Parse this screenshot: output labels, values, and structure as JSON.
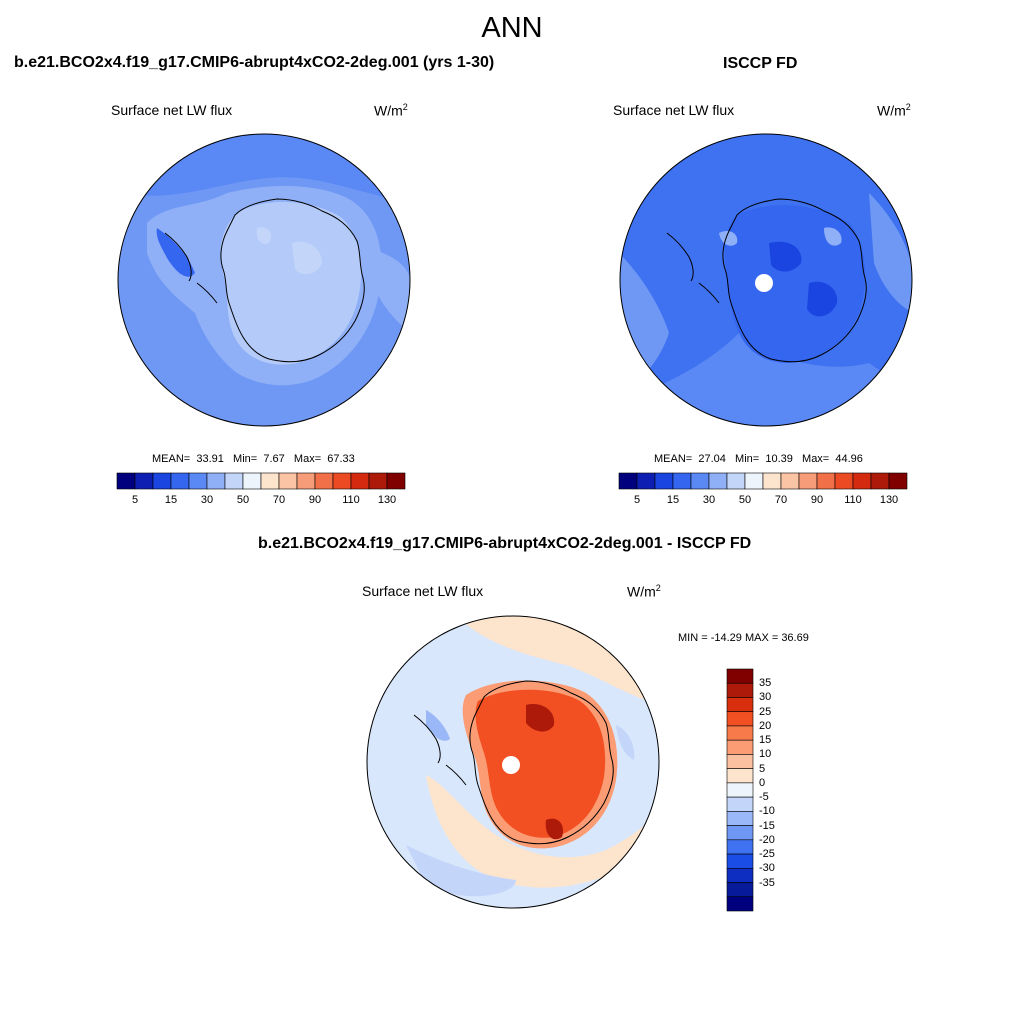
{
  "page_title": "ANN",
  "units_base": "W/m",
  "units_exp": "2",
  "panels": [
    {
      "title": "b.e21.BCO2x4.f19_g17.CMIP6-abrupt4xCO2-2deg.001 (yrs 1-30)",
      "variable": "Surface net LW flux",
      "stats": {
        "mean_label": "MEAN=",
        "mean": "33.91",
        "min_label": "Min=",
        "min": "7.67",
        "max_label": "Max=",
        "max": "67.33"
      }
    },
    {
      "title": "ISCCP FD",
      "variable": "Surface net LW flux",
      "stats": {
        "mean_label": "MEAN=",
        "mean": "27.04",
        "min_label": "Min=",
        "min": "10.39",
        "max_label": "Max=",
        "max": "44.96"
      }
    }
  ],
  "diff_panel": {
    "title": "b.e21.BCO2x4.f19_g17.CMIP6-abrupt4xCO2-2deg.001 - ISCCP FD",
    "variable": "Surface net LW flux",
    "minmax_text": "MIN = -14.29 MAX =  36.69"
  },
  "colorbar_main": {
    "colors": [
      "#00007f",
      "#0d1fb3",
      "#1a45e0",
      "#3566f0",
      "#5a88f5",
      "#8fb0f7",
      "#c3d6fa",
      "#eef4fc",
      "#fde4cc",
      "#fbc4a4",
      "#f79c78",
      "#f27048",
      "#ec4a22",
      "#d42a10",
      "#ad1a0a",
      "#800000"
    ],
    "tick_labels": [
      "5",
      "15",
      "30",
      "50",
      "70",
      "90",
      "110",
      "130"
    ]
  },
  "colorbar_diff": {
    "colors": [
      "#800000",
      "#ad1a0a",
      "#d8300e",
      "#f24f22",
      "#f77a4a",
      "#fb9c74",
      "#fbc0a0",
      "#fde4cc",
      "#eef4fc",
      "#c3d6fa",
      "#9ab8f7",
      "#6f98f5",
      "#3f72f0",
      "#1a4de6",
      "#0d2ec0",
      "#061a9a",
      "#00007f"
    ],
    "tick_labels": [
      "35",
      "30",
      "25",
      "20",
      "15",
      "10",
      "5",
      "0",
      "-5",
      "-10",
      "-15",
      "-20",
      "-25",
      "-30",
      "-35"
    ]
  },
  "map_colors": {
    "ocean_a": "#6f98f5",
    "ocean_b": "#3f72f0",
    "land_a": "#b4cbfa",
    "land_b": "#3566f0",
    "diff_ocean": "#d8e7fb",
    "diff_warm": "#fde4cc",
    "diff_hot": "#f24f22",
    "diff_max": "#ad1a0a"
  }
}
